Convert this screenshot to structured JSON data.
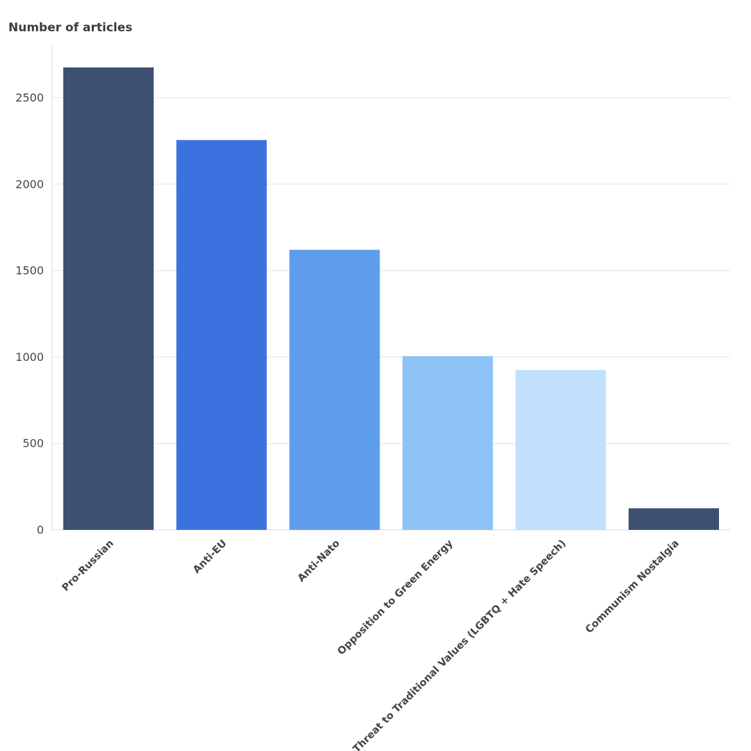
{
  "chart_data": {
    "type": "bar",
    "ylabel": "Number of articles",
    "categories": [
      "Pro-Russian",
      "Anti-EU",
      "Anti-Nato",
      "Opposition to Green Energy",
      "Threat to Traditional Values (LGBTQ + Hate Speech)",
      "Communism Nostalgia"
    ],
    "values": [
      2675,
      2255,
      1620,
      1005,
      925,
      125
    ],
    "colors": [
      "#3e5072",
      "#3b72e0",
      "#5f9ded",
      "#8dc2f6",
      "#c0e0fc",
      "#3e5072"
    ],
    "yticks": [
      0,
      500,
      1000,
      1500,
      2000,
      2500
    ],
    "ylim": [
      0,
      2800
    ],
    "grid": true,
    "legend": false
  }
}
